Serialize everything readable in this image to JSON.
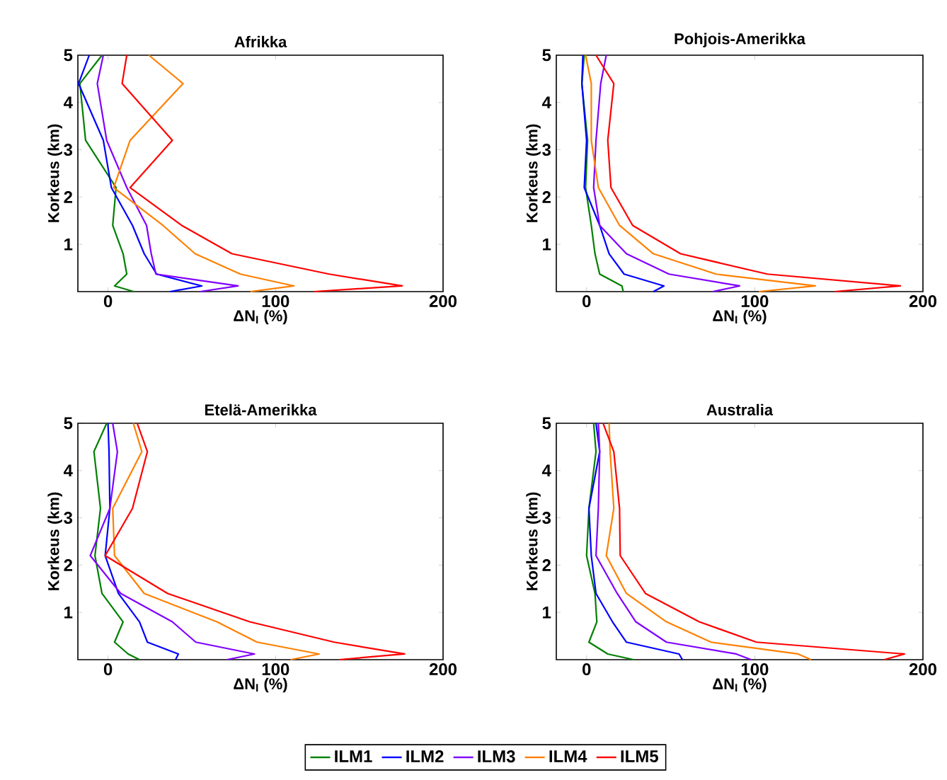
{
  "chart_data": [
    {
      "type": "line",
      "title": "Afrikka",
      "xlabel": "ΔN$_{I}$ (%)",
      "ylabel": "Korkeus (km)",
      "xlim": [
        -18,
        200
      ],
      "ylim": [
        0,
        5
      ],
      "xticks": [
        0,
        100,
        200
      ],
      "yticks": [
        1,
        2,
        3,
        4,
        5
      ],
      "grid": false,
      "series": [
        {
          "color": "#008000",
          "x": [
            15.4,
            3.9,
            11.2,
            9,
            2.8,
            4.8,
            -13.4,
            -16.8,
            -3.6
          ],
          "values": [
            0,
            0.12,
            0.37,
            0.8,
            1.4,
            2.2,
            3.2,
            4.4,
            5
          ]
        },
        {
          "color": "#0000ff",
          "x": [
            37,
            56,
            29,
            21.6,
            14.6,
            2,
            -2.8,
            -17.6,
            -11.2
          ],
          "values": [
            0,
            0.12,
            0.37,
            0.8,
            1.4,
            2.2,
            3.2,
            4.4,
            5
          ]
        },
        {
          "color": "#8000ff",
          "x": [
            55,
            77.6,
            28.6,
            25.8,
            23,
            11.2,
            -0.8,
            -6.4,
            -2.8
          ],
          "values": [
            0,
            0.12,
            0.37,
            0.8,
            1.4,
            2.2,
            3.2,
            4.4,
            5
          ]
        },
        {
          "color": "#ff8000",
          "x": [
            85,
            111,
            79,
            52,
            32.8,
            3.4,
            13.2,
            44.8,
            24.4
          ],
          "values": [
            0,
            0.12,
            0.37,
            0.8,
            1.4,
            2.2,
            3.2,
            4.4,
            5
          ]
        },
        {
          "color": "#ff0000",
          "x": [
            123,
            175.6,
            132,
            74,
            44,
            13.2,
            38.4,
            8.4,
            11.2
          ],
          "values": [
            0,
            0.12,
            0.37,
            0.8,
            1.4,
            2.2,
            3.2,
            4.4,
            5
          ]
        }
      ]
    },
    {
      "type": "line",
      "title": "Pohjois-Amerikka",
      "xlabel": "ΔN$_{I}$ (%)",
      "ylabel": "Korkeus (km)",
      "xlim": [
        -18,
        200
      ],
      "ylim": [
        0,
        5
      ],
      "xticks": [
        0,
        100,
        200
      ],
      "yticks": [
        1,
        2,
        3,
        4,
        5
      ],
      "grid": false,
      "series": [
        {
          "color": "#008000",
          "x": [
            21.8,
            21,
            7.8,
            5,
            2.8,
            -0.6,
            0.6,
            -2.8,
            -1.4
          ],
          "values": [
            0,
            0.12,
            0.37,
            0.8,
            1.4,
            2.2,
            3.2,
            4.4,
            5
          ]
        },
        {
          "color": "#0000ff",
          "x": [
            39.7,
            46,
            22.3,
            13.4,
            7.8,
            -1.4,
            0,
            -2.8,
            -2.2
          ],
          "values": [
            0,
            0.12,
            0.37,
            0.8,
            1.4,
            2.2,
            3.2,
            4.4,
            5
          ]
        },
        {
          "color": "#8000ff",
          "x": [
            75,
            91,
            49,
            23.7,
            7.8,
            4.2,
            5.6,
            8.4,
            11.7
          ],
          "values": [
            0,
            0.12,
            0.37,
            0.8,
            1.4,
            2.2,
            3.2,
            4.4,
            5
          ]
        },
        {
          "color": "#ff8000",
          "x": [
            102.5,
            136,
            77,
            39.7,
            19.6,
            7,
            2.8,
            2.8,
            -0.6
          ],
          "values": [
            0,
            0.12,
            0.37,
            0.8,
            1.4,
            2.2,
            3.2,
            4.4,
            5
          ]
        },
        {
          "color": "#ff0000",
          "x": [
            147.5,
            186.6,
            107.5,
            55.9,
            27.4,
            14.5,
            12.6,
            16.2,
            5.6
          ],
          "values": [
            0,
            0.12,
            0.37,
            0.8,
            1.4,
            2.2,
            3.2,
            4.4,
            5
          ]
        }
      ]
    },
    {
      "type": "line",
      "title": "Etelä-Amerikka",
      "xlabel": "ΔN$_{I}$ (%)",
      "ylabel": "Korkeus (km)",
      "xlim": [
        -18,
        200
      ],
      "ylim": [
        0,
        5
      ],
      "xticks": [
        0,
        100,
        200
      ],
      "yticks": [
        1,
        2,
        3,
        4,
        5
      ],
      "grid": false,
      "series": [
        {
          "color": "#008000",
          "x": [
            18.8,
            12,
            3.9,
            9,
            -3.6,
            -7.8,
            -4.5,
            -8.4,
            -0.8
          ],
          "values": [
            0,
            0.12,
            0.37,
            0.8,
            1.4,
            2.2,
            3.2,
            4.4,
            5
          ]
        },
        {
          "color": "#0000ff",
          "x": [
            40.3,
            42,
            23.5,
            18.8,
            6.2,
            -1.7,
            1.1,
            0.6,
            0
          ],
          "values": [
            0,
            0.12,
            0.37,
            0.8,
            1.4,
            2.2,
            3.2,
            4.4,
            5
          ]
        },
        {
          "color": "#8000ff",
          "x": [
            71,
            87.4,
            52.4,
            38.4,
            7.6,
            -10.6,
            1.1,
            5.6,
            2.8
          ],
          "values": [
            0,
            0.12,
            0.37,
            0.8,
            1.4,
            2.2,
            3.2,
            4.4,
            5
          ]
        },
        {
          "color": "#ff8000",
          "x": [
            109,
            126,
            89,
            65,
            21.6,
            3.9,
            2.8,
            20.2,
            15.1
          ],
          "values": [
            0,
            0.12,
            0.37,
            0.8,
            1.4,
            2.2,
            3.2,
            4.4,
            5
          ]
        },
        {
          "color": "#ff0000",
          "x": [
            138,
            177,
            135,
            84.6,
            35.6,
            -1.7,
            14.6,
            23.5,
            17.4
          ],
          "values": [
            0,
            0.12,
            0.37,
            0.8,
            1.4,
            2.2,
            3.2,
            4.4,
            5
          ]
        }
      ]
    },
    {
      "type": "line",
      "title": "Australia",
      "xlabel": "ΔN$_{I}$ (%)",
      "ylabel": "Korkeus (km)",
      "xlim": [
        -18,
        200
      ],
      "ylim": [
        0,
        5
      ],
      "xticks": [
        0,
        100,
        200
      ],
      "yticks": [
        1,
        2,
        3,
        4,
        5
      ],
      "grid": false,
      "legend": "bottom",
      "series": [
        {
          "name": "ILM1",
          "color": "#008000",
          "x": [
            28,
            12.6,
            1.4,
            6.1,
            5,
            0,
            1.4,
            5.6,
            4.2
          ],
          "values": [
            0,
            0.12,
            0.37,
            0.8,
            1.4,
            2.2,
            3.2,
            4.4,
            5
          ]
        },
        {
          "name": "ILM2",
          "color": "#0000ff",
          "x": [
            57,
            55,
            23.7,
            15.4,
            5.6,
            2.8,
            1.4,
            7.8,
            5.6
          ],
          "values": [
            0,
            0.12,
            0.37,
            0.8,
            1.4,
            2.2,
            3.2,
            4.4,
            5
          ]
        },
        {
          "name": "ILM3",
          "color": "#8000ff",
          "x": [
            97.8,
            89,
            47.5,
            29.3,
            18.2,
            5.6,
            7,
            7.8,
            7
          ],
          "values": [
            0,
            0.12,
            0.37,
            0.8,
            1.4,
            2.2,
            3.2,
            4.4,
            5
          ]
        },
        {
          "name": "ILM4",
          "color": "#ff8000",
          "x": [
            133.5,
            125.7,
            74,
            47.5,
            23.7,
            11.7,
            16.2,
            14,
            13.4
          ],
          "values": [
            0,
            0.12,
            0.37,
            0.8,
            1.4,
            2.2,
            3.2,
            4.4,
            5
          ]
        },
        {
          "name": "ILM5",
          "color": "#ff0000",
          "x": [
            177,
            189,
            101,
            67,
            35,
            20,
            19.6,
            16.2,
            9.8
          ],
          "values": [
            0,
            0.12,
            0.37,
            0.8,
            1.4,
            2.2,
            3.2,
            4.4,
            5
          ]
        }
      ]
    }
  ]
}
